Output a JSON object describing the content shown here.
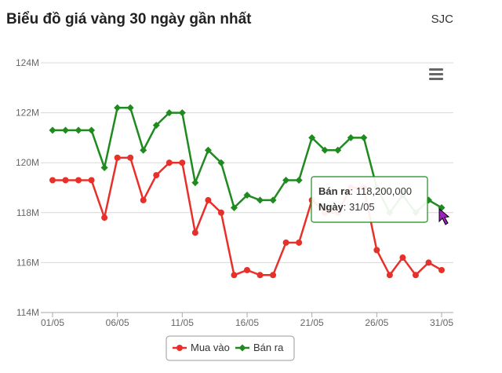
{
  "chart_data": {
    "type": "line",
    "title": "Biểu đồ giá vàng 30 ngày gần nhất",
    "subtitle": "SJC",
    "categories": [
      "01/05",
      null,
      null,
      null,
      null,
      "06/05",
      null,
      null,
      null,
      null,
      "11/05",
      null,
      null,
      null,
      null,
      "16/05",
      null,
      null,
      null,
      null,
      "21/05",
      null,
      null,
      null,
      null,
      "26/05",
      null,
      null,
      null,
      null,
      "31/05"
    ],
    "series": [
      {
        "name": "Mua vào",
        "color": "#e8302a",
        "values": [
          119300000,
          119300000,
          119300000,
          119300000,
          117800000,
          120200000,
          120200000,
          118500000,
          119500000,
          120000000,
          120000000,
          117200000,
          118500000,
          118000000,
          115500000,
          115700000,
          115500000,
          115500000,
          116800000,
          116800000,
          118500000,
          118000000,
          118000000,
          119000000,
          119000000,
          116500000,
          115500000,
          116200000,
          115500000,
          116000000,
          115700000
        ]
      },
      {
        "name": "Bán ra",
        "color": "#1f8a1f",
        "values": [
          121300000,
          121300000,
          121300000,
          121300000,
          119800000,
          122200000,
          122200000,
          120500000,
          121500000,
          122000000,
          122000000,
          119200000,
          120500000,
          120000000,
          118200000,
          118700000,
          118500000,
          118500000,
          119300000,
          119300000,
          121000000,
          120500000,
          120500000,
          121000000,
          121000000,
          119000000,
          118000000,
          118700000,
          118000000,
          118500000,
          118200000
        ]
      }
    ],
    "ylim": [
      114000000,
      124000000
    ],
    "yticks": [
      {
        "value": 114000000,
        "label": "114M"
      },
      {
        "value": 116000000,
        "label": "116M"
      },
      {
        "value": 118000000,
        "label": "118M"
      },
      {
        "value": 120000000,
        "label": "120M"
      },
      {
        "value": 122000000,
        "label": "122M"
      },
      {
        "value": 124000000,
        "label": "124M"
      }
    ],
    "grid": true,
    "tooltip": {
      "series": 1,
      "index": 30,
      "value_label": "118,200,000",
      "date_label": "Ngày"
    }
  }
}
